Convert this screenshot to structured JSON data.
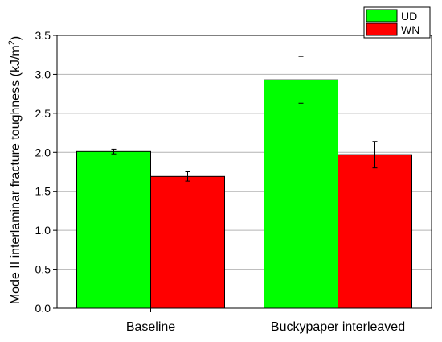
{
  "chart_data": {
    "type": "bar",
    "categories": [
      "Baseline",
      "Buckypaper interleaved"
    ],
    "series": [
      {
        "name": "UD",
        "color": "#00ff00",
        "values": [
          2.01,
          2.93
        ],
        "errors": [
          0.03,
          0.3
        ]
      },
      {
        "name": "WN",
        "color": "#ff0000",
        "values": [
          1.69,
          1.97
        ],
        "errors": [
          0.06,
          0.17
        ]
      }
    ],
    "ylabel": "Mode II interlaminar fracture toughness (kJ/m²)",
    "ylabel_main": "Mode II interlaminar fracture toughness (kJ/m",
    "ylabel_sup": "2",
    "ylabel_end": ")",
    "xlabel": "",
    "ylim": [
      0,
      3.5
    ],
    "yticks": [
      "0.0",
      "0.5",
      "1.0",
      "1.5",
      "2.0",
      "2.5",
      "3.0",
      "3.5"
    ],
    "grid": true,
    "legend_position": "top-right"
  }
}
